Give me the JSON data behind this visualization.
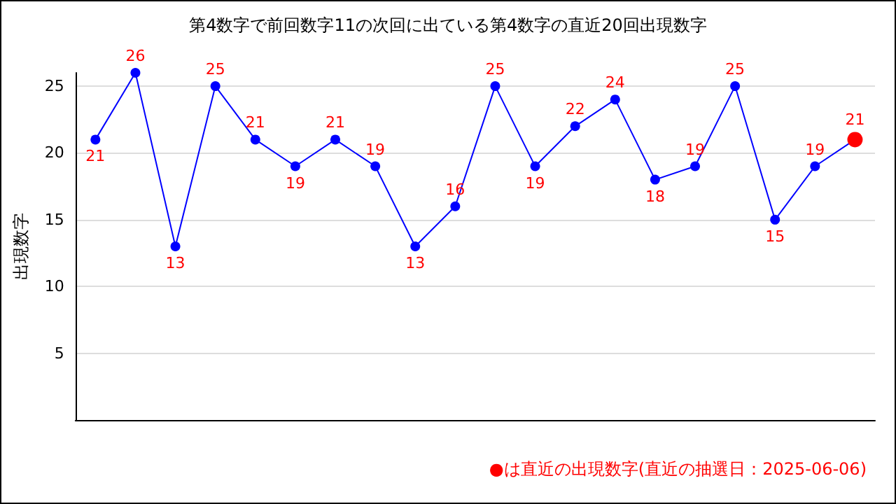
{
  "chart_data": {
    "type": "line",
    "title": "第4数字で前回数字11の次回に出ている第4数字の直近20回出現数字",
    "ylabel": "出現数字",
    "categories": [
      null,
      null,
      null,
      null,
      null,
      null,
      null,
      null,
      null,
      null,
      null,
      null,
      null,
      null,
      null,
      null,
      null,
      null,
      null,
      null
    ],
    "series": [
      {
        "color": "#0000ff",
        "colors": [
          "#0000ff",
          "#0000ff",
          "#0000ff",
          "#0000ff",
          "#0000ff",
          "#0000ff",
          "#0000ff",
          "#0000ff",
          "#0000ff",
          "#0000ff",
          "#0000ff",
          "#0000ff",
          "#0000ff",
          "#0000ff",
          "#0000ff",
          "#0000ff",
          "#0000ff",
          "#0000ff",
          "#0000ff",
          "#ff0000"
        ],
        "values": [
          21,
          26,
          13,
          25,
          21,
          19,
          21,
          19,
          13,
          16,
          25,
          19,
          22,
          24,
          18,
          19,
          25,
          15,
          19,
          21
        ]
      }
    ],
    "ylim": [
      0,
      26
    ],
    "yticks": [
      5,
      10,
      15,
      20,
      25
    ],
    "grid": "y",
    "marker": "circle",
    "line_style": "solid",
    "data_labels": true,
    "tick_labels": "y",
    "annotations": [
      "●は直近の出現数字(直近の抽選日：2025-06-06)"
    ]
  }
}
